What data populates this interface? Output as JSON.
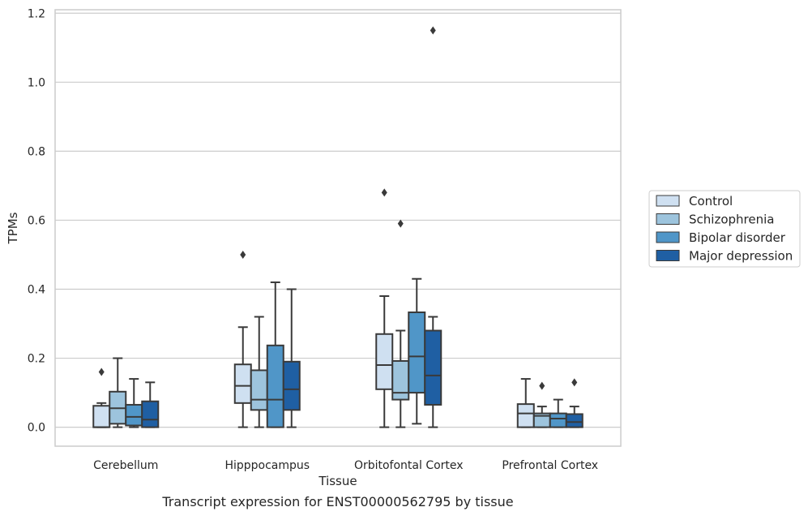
{
  "chart_data": {
    "type": "boxplot",
    "caption": "Transcript expression for ENST00000562795 by tissue",
    "xlabel": "Tissue",
    "ylabel": "TPMs",
    "ylim": [
      -0.055,
      1.21
    ],
    "yticks": [
      0.0,
      0.2,
      0.4,
      0.6,
      0.8,
      1.0,
      1.2
    ],
    "ytick_labels": [
      "0.0",
      "0.2",
      "0.4",
      "0.6",
      "0.8",
      "1.0",
      "1.2"
    ],
    "grid": "horizontal",
    "legend_position": "right",
    "categories": [
      "Cerebellum",
      "Hipppocampus",
      "Orbitofontal Cortex",
      "Prefrontal Cortex"
    ],
    "series": [
      {
        "name": "Control",
        "color": "#cfe0f1",
        "boxes": [
          {
            "whislo": 0.0,
            "q1": 0.0,
            "med": 0.0,
            "q3": 0.062,
            "whishi": 0.07,
            "fliers": [
              0.16
            ]
          },
          {
            "whislo": 0.0,
            "q1": 0.07,
            "med": 0.12,
            "q3": 0.182,
            "whishi": 0.29,
            "fliers": [
              0.5
            ]
          },
          {
            "whislo": 0.0,
            "q1": 0.11,
            "med": 0.18,
            "q3": 0.27,
            "whishi": 0.38,
            "fliers": [
              0.68
            ]
          },
          {
            "whislo": 0.0,
            "q1": 0.0,
            "med": 0.04,
            "q3": 0.067,
            "whishi": 0.14,
            "fliers": []
          }
        ]
      },
      {
        "name": "Schizophrenia",
        "color": "#9dc4dd",
        "boxes": [
          {
            "whislo": 0.0,
            "q1": 0.01,
            "med": 0.055,
            "q3": 0.103,
            "whishi": 0.2,
            "fliers": []
          },
          {
            "whislo": 0.0,
            "q1": 0.05,
            "med": 0.08,
            "q3": 0.165,
            "whishi": 0.32,
            "fliers": []
          },
          {
            "whislo": 0.0,
            "q1": 0.08,
            "med": 0.1,
            "q3": 0.192,
            "whishi": 0.28,
            "fliers": [
              0.59
            ]
          },
          {
            "whislo": 0.0,
            "q1": 0.0,
            "med": 0.033,
            "q3": 0.04,
            "whishi": 0.06,
            "fliers": [
              0.12
            ]
          }
        ]
      },
      {
        "name": "Bipolar disorder",
        "color": "#5096c8",
        "boxes": [
          {
            "whislo": 0.0,
            "q1": 0.005,
            "med": 0.03,
            "q3": 0.065,
            "whishi": 0.14,
            "fliers": []
          },
          {
            "whislo": 0.0,
            "q1": 0.0,
            "med": 0.08,
            "q3": 0.237,
            "whishi": 0.42,
            "fliers": []
          },
          {
            "whislo": 0.01,
            "q1": 0.1,
            "med": 0.205,
            "q3": 0.333,
            "whishi": 0.43,
            "fliers": []
          },
          {
            "whislo": 0.0,
            "q1": 0.0,
            "med": 0.025,
            "q3": 0.04,
            "whishi": 0.08,
            "fliers": []
          }
        ]
      },
      {
        "name": "Major depression",
        "color": "#1f5fa3",
        "boxes": [
          {
            "whislo": 0.0,
            "q1": 0.0,
            "med": 0.022,
            "q3": 0.075,
            "whishi": 0.13,
            "fliers": []
          },
          {
            "whislo": 0.0,
            "q1": 0.05,
            "med": 0.11,
            "q3": 0.19,
            "whishi": 0.4,
            "fliers": []
          },
          {
            "whislo": 0.0,
            "q1": 0.065,
            "med": 0.15,
            "q3": 0.28,
            "whishi": 0.32,
            "fliers": [
              1.15
            ]
          },
          {
            "whislo": 0.0,
            "q1": 0.0,
            "med": 0.015,
            "q3": 0.038,
            "whishi": 0.06,
            "fliers": [
              0.13
            ]
          }
        ]
      }
    ]
  }
}
